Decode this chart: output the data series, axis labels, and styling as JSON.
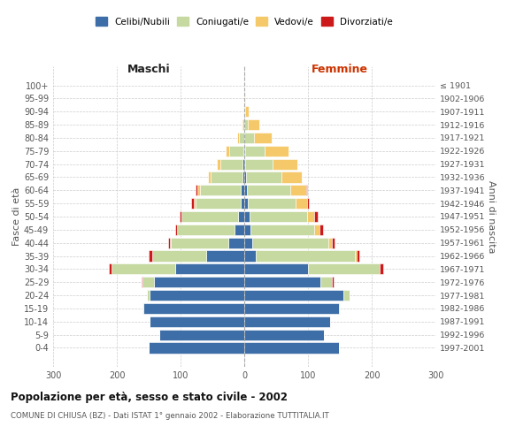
{
  "age_groups": [
    "100+",
    "95-99",
    "90-94",
    "85-89",
    "80-84",
    "75-79",
    "70-74",
    "65-69",
    "60-64",
    "55-59",
    "50-54",
    "45-49",
    "40-44",
    "35-39",
    "30-34",
    "25-29",
    "20-24",
    "15-19",
    "10-14",
    "5-9",
    "0-4"
  ],
  "birth_years": [
    "≤ 1901",
    "1902-1906",
    "1907-1911",
    "1912-1916",
    "1917-1921",
    "1922-1926",
    "1927-1931",
    "1932-1936",
    "1937-1941",
    "1942-1946",
    "1947-1951",
    "1952-1956",
    "1957-1961",
    "1962-1966",
    "1967-1971",
    "1972-1976",
    "1977-1981",
    "1982-1986",
    "1987-1991",
    "1992-1996",
    "1997-2001"
  ],
  "males_celibi": [
    0,
    0,
    0,
    0,
    0,
    2,
    3,
    3,
    5,
    5,
    10,
    15,
    25,
    60,
    108,
    142,
    148,
    158,
    148,
    133,
    150
  ],
  "males_coniugati": [
    0,
    0,
    1,
    3,
    8,
    22,
    35,
    50,
    65,
    72,
    88,
    90,
    90,
    85,
    100,
    18,
    5,
    2,
    0,
    0,
    0
  ],
  "males_vedovi": [
    0,
    0,
    0,
    1,
    3,
    5,
    5,
    4,
    3,
    2,
    1,
    1,
    1,
    0,
    0,
    0,
    0,
    0,
    0,
    0,
    0
  ],
  "males_divorziati": [
    0,
    0,
    0,
    0,
    0,
    0,
    0,
    0,
    4,
    4,
    2,
    2,
    3,
    5,
    5,
    1,
    0,
    0,
    0,
    0,
    0
  ],
  "females_nubili": [
    0,
    0,
    0,
    0,
    0,
    2,
    2,
    3,
    4,
    5,
    8,
    10,
    12,
    18,
    100,
    120,
    155,
    148,
    135,
    125,
    148
  ],
  "females_coniugate": [
    0,
    0,
    1,
    5,
    15,
    30,
    42,
    55,
    68,
    75,
    90,
    100,
    120,
    155,
    112,
    18,
    10,
    2,
    0,
    0,
    0
  ],
  "females_vedove": [
    0,
    1,
    6,
    18,
    28,
    38,
    40,
    32,
    25,
    18,
    12,
    8,
    5,
    3,
    1,
    0,
    0,
    0,
    0,
    0,
    0
  ],
  "females_divorziate": [
    0,
    0,
    0,
    0,
    0,
    0,
    0,
    0,
    2,
    4,
    5,
    5,
    5,
    5,
    5,
    2,
    0,
    0,
    0,
    0,
    0
  ],
  "color_celibi": "#3d6ea8",
  "color_coniugati": "#c5d9a0",
  "color_vedovi": "#f5c96a",
  "color_divorziati": "#cc1a1a",
  "xlim": 300,
  "xticks": [
    -300,
    -200,
    -100,
    0,
    100,
    200,
    300
  ],
  "title_main": "Popolazione per età, sesso e stato civile - 2002",
  "title_sub": "COMUNE DI CHIUSA (BZ) - Dati ISTAT 1° gennaio 2002 - Elaborazione TUTTITALIA.IT",
  "ylabel_left": "Fasce di età",
  "ylabel_right": "Anni di nascita",
  "header_left": "Maschi",
  "header_right": "Femmine",
  "legend_labels": [
    "Celibi/Nubili",
    "Coniugati/e",
    "Vedovi/e",
    "Divorziati/e"
  ],
  "bg_color": "#ffffff",
  "grid_color": "#cccccc"
}
